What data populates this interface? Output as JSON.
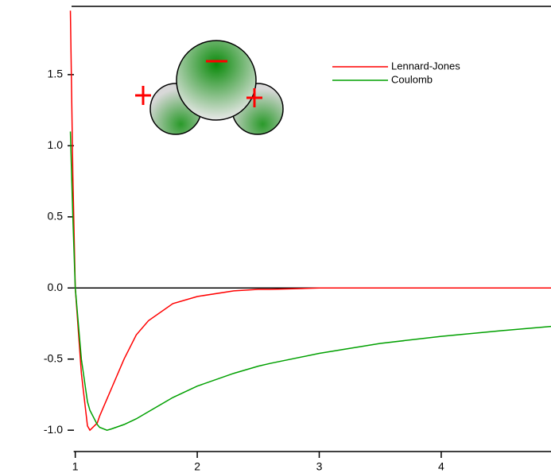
{
  "chart_data": {
    "type": "line",
    "x": [
      0.96,
      0.98,
      1.0,
      1.05,
      1.1,
      1.12,
      1.18,
      1.2,
      1.26,
      1.3,
      1.4,
      1.5,
      1.6,
      1.8,
      2.0,
      2.3,
      2.5,
      2.6,
      3,
      3.5,
      4,
      4.5,
      4.9
    ],
    "series": [
      {
        "name": "Lennard-Jones",
        "color": "#ff0000",
        "values": [
          1.95,
          0.8,
          0,
          -0.6,
          -0.97,
          -1.0,
          -0.95,
          -0.9,
          -0.78,
          -0.7,
          -0.5,
          -0.33,
          -0.23,
          -0.11,
          -0.06,
          -0.02,
          -0.01,
          -0.01,
          0,
          0,
          0,
          0,
          0
        ]
      },
      {
        "name": "Coulomb",
        "color": "#00a000",
        "values": [
          1.1,
          0.5,
          0,
          -0.5,
          -0.8,
          -0.86,
          -0.96,
          -0.98,
          -1.0,
          -0.99,
          -0.96,
          -0.92,
          -0.87,
          -0.77,
          -0.69,
          -0.6,
          -0.55,
          -0.53,
          -0.46,
          -0.39,
          -0.34,
          -0.3,
          -0.27
        ]
      }
    ],
    "xlim": [
      0.95,
      4.9
    ],
    "ylim": [
      -1.15,
      1.98
    ],
    "xticks": [
      1,
      2,
      3,
      4
    ],
    "yticks": [
      1.5,
      {
        "value": 1,
        "label": "1.0"
      },
      0.5,
      {
        "value": 0,
        "label": "0.0"
      },
      -0.5,
      {
        "value": -1,
        "label": "-1.0"
      }
    ],
    "legend": "top-right"
  }
}
